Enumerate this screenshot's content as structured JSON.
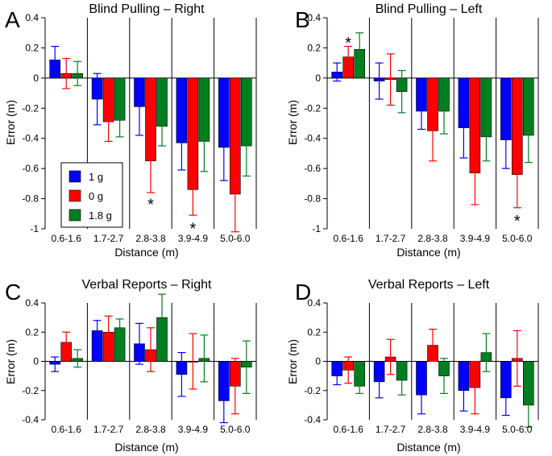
{
  "colors": {
    "series": [
      "#0000ff",
      "#ff0000",
      "#007f1f"
    ]
  },
  "chart_data": [
    {
      "id": "A",
      "type": "bar",
      "title": "Blind Pulling – Right",
      "xlabel": "Distance (m)",
      "ylabel": "Error (m)",
      "ylim": [
        -1.0,
        0.4
      ],
      "yticks": [
        0.4,
        0.2,
        0,
        -0.2,
        -0.4,
        -0.6,
        -0.8,
        -1
      ],
      "ytick_labels": [
        "0.4",
        "0.2",
        "0",
        "-0.2",
        "-0.4",
        "-0.6",
        "-0.8",
        "-1"
      ],
      "categories": [
        "0.6-1.6",
        "1.7-2.7",
        "2.8-3.8",
        "3.9-4.9",
        "5.0-6.0"
      ],
      "series": [
        {
          "name": "1 g",
          "values": [
            0.12,
            -0.14,
            -0.19,
            -0.43,
            -0.46
          ],
          "err_low": [
            0.1,
            0.17,
            0.19,
            0.18,
            0.22
          ],
          "err_high": [
            0.09,
            0.17,
            0.19,
            0.18,
            0.22
          ]
        },
        {
          "name": "0 g",
          "values": [
            0.03,
            -0.29,
            -0.55,
            -0.74,
            -0.77
          ],
          "err_low": [
            0.1,
            0.13,
            0.21,
            0.17,
            0.25
          ],
          "err_high": [
            0.1,
            0.13,
            0.21,
            0.17,
            0.25
          ]
        },
        {
          "name": "1.8 g",
          "values": [
            0.03,
            -0.28,
            -0.32,
            -0.42,
            -0.45
          ],
          "err_low": [
            0.08,
            0.11,
            0.13,
            0.2,
            0.2
          ],
          "err_high": [
            0.08,
            0.11,
            0.13,
            0.2,
            0.2
          ]
        }
      ],
      "stars": [
        {
          "category_index": 2,
          "series_index": 1,
          "y": -0.82,
          "text": "*"
        },
        {
          "category_index": 3,
          "series_index": 1,
          "y": -0.98,
          "text": "*"
        }
      ],
      "legend": {
        "position": "lower-left",
        "entries": [
          "1 g",
          "0 g",
          "1.8 g"
        ]
      }
    },
    {
      "id": "B",
      "type": "bar",
      "title": "Blind Pulling – Left",
      "xlabel": "Distance (m)",
      "ylabel": "Error (m)",
      "ylim": [
        -1.0,
        0.4
      ],
      "yticks": [
        0.4,
        0.2,
        0,
        -0.2,
        -0.4,
        -0.6,
        -0.8,
        -1
      ],
      "ytick_labels": [
        "0.4",
        "0.2",
        "0",
        "-0.2",
        "-0.4",
        "-0.6",
        "-0.8",
        "-1"
      ],
      "categories": [
        "0.6-1.6",
        "1.7-2.7",
        "2.8-3.8",
        "3.9-4.9",
        "5.0-6.0"
      ],
      "series": [
        {
          "name": "1 g",
          "values": [
            0.04,
            -0.02,
            -0.22,
            -0.33,
            -0.41
          ],
          "err_low": [
            0.06,
            0.12,
            0.12,
            0.2,
            0.19
          ],
          "err_high": [
            0.06,
            0.12,
            0.12,
            0.2,
            0.19
          ]
        },
        {
          "name": "0 g",
          "values": [
            0.14,
            -0.01,
            -0.35,
            -0.63,
            -0.64
          ],
          "err_low": [
            0.07,
            0.17,
            0.2,
            0.21,
            0.22
          ],
          "err_high": [
            0.07,
            0.17,
            0.2,
            0.21,
            0.22
          ]
        },
        {
          "name": "1.8 g",
          "values": [
            0.19,
            -0.09,
            -0.22,
            -0.39,
            -0.38
          ],
          "err_low": [
            0.11,
            0.14,
            0.15,
            0.16,
            0.18
          ],
          "err_high": [
            0.11,
            0.14,
            0.15,
            0.16,
            0.18
          ]
        }
      ],
      "stars": [
        {
          "category_index": 0,
          "series_index": 1,
          "y": 0.25,
          "text": "*"
        },
        {
          "category_index": 4,
          "series_index": 1,
          "y": -0.93,
          "text": "*"
        }
      ]
    },
    {
      "id": "C",
      "type": "bar",
      "title": "Verbal Reports – Right",
      "xlabel": "Distance (m)",
      "ylabel": "Error (m)",
      "ylim": [
        -0.4,
        0.4
      ],
      "yticks": [
        0.4,
        0.2,
        0,
        -0.2,
        -0.4
      ],
      "ytick_labels": [
        "0.4",
        "0.2",
        "0",
        "-0.2",
        "-0.4"
      ],
      "categories": [
        "0.6-1.6",
        "1.7-2.7",
        "2.8-3.8",
        "3.9-4.9",
        "5.0-6.0"
      ],
      "series": [
        {
          "name": "1 g",
          "values": [
            -0.02,
            0.21,
            0.12,
            -0.09,
            -0.27
          ],
          "err_low": [
            0.05,
            0.07,
            0.14,
            0.15,
            0.15
          ],
          "err_high": [
            0.05,
            0.07,
            0.14,
            0.15,
            0.15
          ]
        },
        {
          "name": "0 g",
          "values": [
            0.13,
            0.2,
            0.08,
            0.0,
            -0.17
          ],
          "err_low": [
            0.07,
            0.11,
            0.15,
            0.19,
            0.19
          ],
          "err_high": [
            0.07,
            0.11,
            0.15,
            0.19,
            0.19
          ]
        },
        {
          "name": "1.8 g",
          "values": [
            0.02,
            0.23,
            0.3,
            0.02,
            -0.04
          ],
          "err_low": [
            0.06,
            0.06,
            0.16,
            0.16,
            0.18
          ],
          "err_high": [
            0.06,
            0.06,
            0.16,
            0.16,
            0.18
          ]
        }
      ],
      "stars": []
    },
    {
      "id": "D",
      "type": "bar",
      "title": "Verbal Reports – Left",
      "xlabel": "Distance (m)",
      "ylabel": "Error (m)",
      "ylim": [
        -0.4,
        0.4
      ],
      "yticks": [
        0.4,
        0.2,
        0,
        -0.2,
        -0.4
      ],
      "ytick_labels": [
        "0.4",
        "0.2",
        "0",
        "-0.2",
        "-0.4"
      ],
      "categories": [
        "0.6-1.6",
        "1.7-2.7",
        "2.8-3.8",
        "3.9-4.9",
        "5.0-6.0"
      ],
      "series": [
        {
          "name": "1 g",
          "values": [
            -0.1,
            -0.14,
            -0.23,
            -0.2,
            -0.25
          ],
          "err_low": [
            0.06,
            0.11,
            0.13,
            0.14,
            0.12
          ],
          "err_high": [
            0.06,
            0.11,
            0.13,
            0.14,
            0.12
          ]
        },
        {
          "name": "0 g",
          "values": [
            -0.06,
            0.03,
            0.11,
            -0.18,
            0.02
          ],
          "err_low": [
            0.09,
            0.12,
            0.11,
            0.18,
            0.19
          ],
          "err_high": [
            0.09,
            0.12,
            0.11,
            0.18,
            0.19
          ]
        },
        {
          "name": "1.8 g",
          "values": [
            -0.17,
            -0.13,
            -0.1,
            0.06,
            -0.3
          ],
          "err_low": [
            0.05,
            0.1,
            0.12,
            0.13,
            0.15
          ],
          "err_high": [
            0.05,
            0.1,
            0.12,
            0.13,
            0.15
          ]
        }
      ],
      "stars": []
    }
  ]
}
